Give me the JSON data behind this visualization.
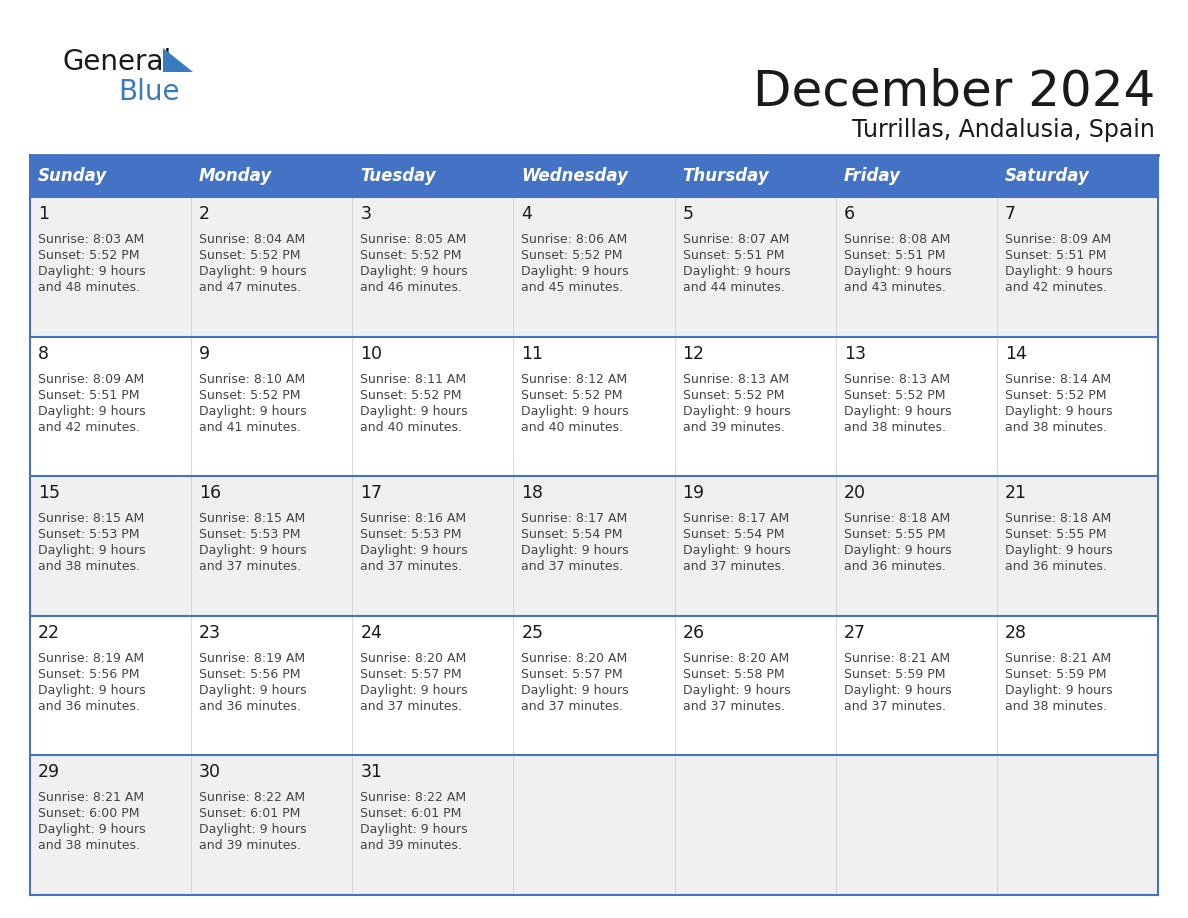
{
  "title": "December 2024",
  "subtitle": "Turrillas, Andalusia, Spain",
  "header_bg": "#4472C4",
  "header_text_color": "#FFFFFF",
  "days_of_week": [
    "Sunday",
    "Monday",
    "Tuesday",
    "Wednesday",
    "Thursday",
    "Friday",
    "Saturday"
  ],
  "row_bg": [
    "#F0F0F0",
    "#FFFFFF",
    "#F0F0F0",
    "#FFFFFF",
    "#F0F0F0"
  ],
  "border_color": "#4472C4",
  "text_color": "#333333",
  "calendar": [
    [
      {
        "day": "1",
        "sunrise": "8:03 AM",
        "sunset": "5:52 PM",
        "dl1": "9 hours",
        "dl2": "and 48 minutes."
      },
      {
        "day": "2",
        "sunrise": "8:04 AM",
        "sunset": "5:52 PM",
        "dl1": "9 hours",
        "dl2": "and 47 minutes."
      },
      {
        "day": "3",
        "sunrise": "8:05 AM",
        "sunset": "5:52 PM",
        "dl1": "9 hours",
        "dl2": "and 46 minutes."
      },
      {
        "day": "4",
        "sunrise": "8:06 AM",
        "sunset": "5:52 PM",
        "dl1": "9 hours",
        "dl2": "and 45 minutes."
      },
      {
        "day": "5",
        "sunrise": "8:07 AM",
        "sunset": "5:51 PM",
        "dl1": "9 hours",
        "dl2": "and 44 minutes."
      },
      {
        "day": "6",
        "sunrise": "8:08 AM",
        "sunset": "5:51 PM",
        "dl1": "9 hours",
        "dl2": "and 43 minutes."
      },
      {
        "day": "7",
        "sunrise": "8:09 AM",
        "sunset": "5:51 PM",
        "dl1": "9 hours",
        "dl2": "and 42 minutes."
      }
    ],
    [
      {
        "day": "8",
        "sunrise": "8:09 AM",
        "sunset": "5:51 PM",
        "dl1": "9 hours",
        "dl2": "and 42 minutes."
      },
      {
        "day": "9",
        "sunrise": "8:10 AM",
        "sunset": "5:52 PM",
        "dl1": "9 hours",
        "dl2": "and 41 minutes."
      },
      {
        "day": "10",
        "sunrise": "8:11 AM",
        "sunset": "5:52 PM",
        "dl1": "9 hours",
        "dl2": "and 40 minutes."
      },
      {
        "day": "11",
        "sunrise": "8:12 AM",
        "sunset": "5:52 PM",
        "dl1": "9 hours",
        "dl2": "and 40 minutes."
      },
      {
        "day": "12",
        "sunrise": "8:13 AM",
        "sunset": "5:52 PM",
        "dl1": "9 hours",
        "dl2": "and 39 minutes."
      },
      {
        "day": "13",
        "sunrise": "8:13 AM",
        "sunset": "5:52 PM",
        "dl1": "9 hours",
        "dl2": "and 38 minutes."
      },
      {
        "day": "14",
        "sunrise": "8:14 AM",
        "sunset": "5:52 PM",
        "dl1": "9 hours",
        "dl2": "and 38 minutes."
      }
    ],
    [
      {
        "day": "15",
        "sunrise": "8:15 AM",
        "sunset": "5:53 PM",
        "dl1": "9 hours",
        "dl2": "and 38 minutes."
      },
      {
        "day": "16",
        "sunrise": "8:15 AM",
        "sunset": "5:53 PM",
        "dl1": "9 hours",
        "dl2": "and 37 minutes."
      },
      {
        "day": "17",
        "sunrise": "8:16 AM",
        "sunset": "5:53 PM",
        "dl1": "9 hours",
        "dl2": "and 37 minutes."
      },
      {
        "day": "18",
        "sunrise": "8:17 AM",
        "sunset": "5:54 PM",
        "dl1": "9 hours",
        "dl2": "and 37 minutes."
      },
      {
        "day": "19",
        "sunrise": "8:17 AM",
        "sunset": "5:54 PM",
        "dl1": "9 hours",
        "dl2": "and 37 minutes."
      },
      {
        "day": "20",
        "sunrise": "8:18 AM",
        "sunset": "5:55 PM",
        "dl1": "9 hours",
        "dl2": "and 36 minutes."
      },
      {
        "day": "21",
        "sunrise": "8:18 AM",
        "sunset": "5:55 PM",
        "dl1": "9 hours",
        "dl2": "and 36 minutes."
      }
    ],
    [
      {
        "day": "22",
        "sunrise": "8:19 AM",
        "sunset": "5:56 PM",
        "dl1": "9 hours",
        "dl2": "and 36 minutes."
      },
      {
        "day": "23",
        "sunrise": "8:19 AM",
        "sunset": "5:56 PM",
        "dl1": "9 hours",
        "dl2": "and 36 minutes."
      },
      {
        "day": "24",
        "sunrise": "8:20 AM",
        "sunset": "5:57 PM",
        "dl1": "9 hours",
        "dl2": "and 37 minutes."
      },
      {
        "day": "25",
        "sunrise": "8:20 AM",
        "sunset": "5:57 PM",
        "dl1": "9 hours",
        "dl2": "and 37 minutes."
      },
      {
        "day": "26",
        "sunrise": "8:20 AM",
        "sunset": "5:58 PM",
        "dl1": "9 hours",
        "dl2": "and 37 minutes."
      },
      {
        "day": "27",
        "sunrise": "8:21 AM",
        "sunset": "5:59 PM",
        "dl1": "9 hours",
        "dl2": "and 37 minutes."
      },
      {
        "day": "28",
        "sunrise": "8:21 AM",
        "sunset": "5:59 PM",
        "dl1": "9 hours",
        "dl2": "and 38 minutes."
      }
    ],
    [
      {
        "day": "29",
        "sunrise": "8:21 AM",
        "sunset": "6:00 PM",
        "dl1": "9 hours",
        "dl2": "and 38 minutes."
      },
      {
        "day": "30",
        "sunrise": "8:22 AM",
        "sunset": "6:01 PM",
        "dl1": "9 hours",
        "dl2": "and 39 minutes."
      },
      {
        "day": "31",
        "sunrise": "8:22 AM",
        "sunset": "6:01 PM",
        "dl1": "9 hours",
        "dl2": "and 39 minutes."
      },
      null,
      null,
      null,
      null
    ]
  ],
  "logo_general_color": "#1a1a1a",
  "logo_blue_color": "#3a7abf",
  "logo_triangle_color": "#3a7abf"
}
